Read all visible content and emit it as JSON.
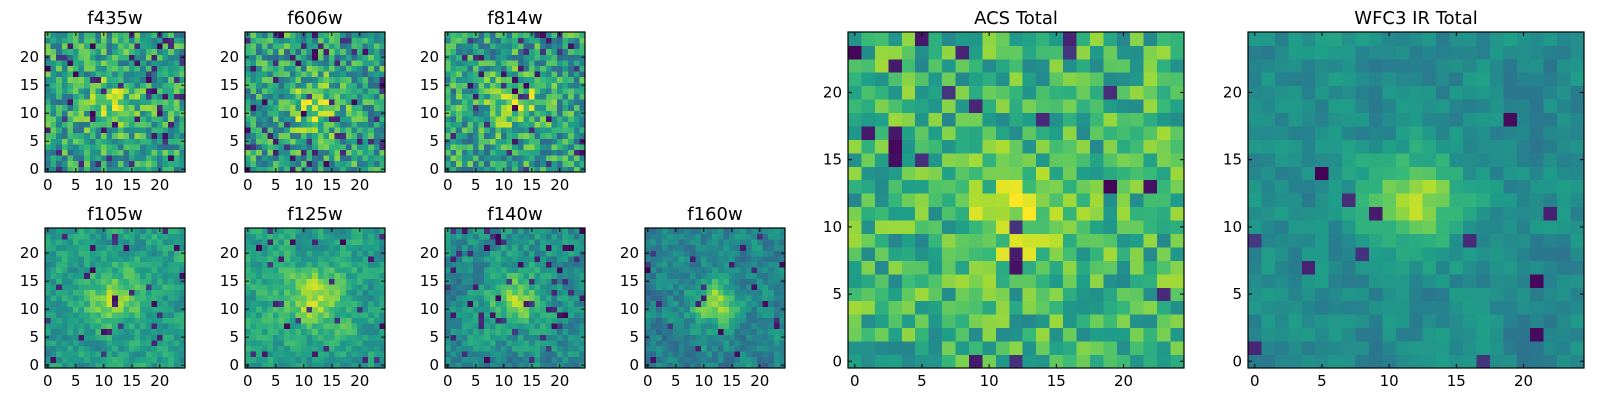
{
  "chart_data": [
    {
      "type": "heatmap",
      "title": "f435w",
      "grid_size": 25,
      "xticks": [
        "0",
        "5",
        "10",
        "15",
        "20"
      ],
      "yticks": [
        "0",
        "5",
        "10",
        "15",
        "20"
      ],
      "xlim": [
        -0.5,
        24.5
      ],
      "ylim": [
        -0.5,
        24.5
      ],
      "colormap": "viridis",
      "value_range": [
        0,
        1
      ],
      "seed": 11,
      "base": 0.58,
      "noise": 0.24,
      "hole_rate": 0.09,
      "blob": {
        "x": 12,
        "y": 12,
        "r": 3.5,
        "amp": 0.22
      }
    },
    {
      "type": "heatmap",
      "title": "f606w",
      "grid_size": 25,
      "xticks": [
        "0",
        "5",
        "10",
        "15",
        "20"
      ],
      "yticks": [
        "0",
        "5",
        "10",
        "15",
        "20"
      ],
      "xlim": [
        -0.5,
        24.5
      ],
      "ylim": [
        -0.5,
        24.5
      ],
      "colormap": "viridis",
      "value_range": [
        0,
        1
      ],
      "seed": 23,
      "base": 0.57,
      "noise": 0.25,
      "hole_rate": 0.08,
      "blob": {
        "x": 12,
        "y": 11,
        "r": 3.2,
        "amp": 0.3
      }
    },
    {
      "type": "heatmap",
      "title": "f814w",
      "grid_size": 25,
      "xticks": [
        "0",
        "5",
        "10",
        "15",
        "20"
      ],
      "yticks": [
        "0",
        "5",
        "10",
        "15",
        "20"
      ],
      "xlim": [
        -0.5,
        24.5
      ],
      "ylim": [
        -0.5,
        24.5
      ],
      "colormap": "viridis",
      "value_range": [
        0,
        1
      ],
      "seed": 37,
      "base": 0.57,
      "noise": 0.25,
      "hole_rate": 0.07,
      "blob": {
        "x": 12,
        "y": 12,
        "r": 3.2,
        "amp": 0.3
      }
    },
    {
      "type": "heatmap",
      "title": "f105w",
      "grid_size": 25,
      "xticks": [
        "0",
        "5",
        "10",
        "15",
        "20"
      ],
      "yticks": [
        "0",
        "5",
        "10",
        "15",
        "20"
      ],
      "xlim": [
        -0.5,
        24.5
      ],
      "ylim": [
        -0.5,
        24.5
      ],
      "colormap": "viridis",
      "value_range": [
        0,
        1
      ],
      "seed": 41,
      "base": 0.55,
      "noise": 0.2,
      "hole_rate": 0.05,
      "blob": {
        "x": 12,
        "y": 12,
        "r": 3.5,
        "amp": 0.3
      },
      "smooth": true
    },
    {
      "type": "heatmap",
      "title": "f125w",
      "grid_size": 25,
      "xticks": [
        "0",
        "5",
        "10",
        "15",
        "20"
      ],
      "yticks": [
        "0",
        "5",
        "10",
        "15",
        "20"
      ],
      "xlim": [
        -0.5,
        24.5
      ],
      "ylim": [
        -0.5,
        24.5
      ],
      "colormap": "viridis",
      "value_range": [
        0,
        1
      ],
      "seed": 53,
      "base": 0.58,
      "noise": 0.2,
      "hole_rate": 0.05,
      "blob": {
        "x": 12,
        "y": 12,
        "r": 3.5,
        "amp": 0.3
      },
      "smooth": true
    },
    {
      "type": "heatmap",
      "title": "f140w",
      "grid_size": 25,
      "xticks": [
        "0",
        "5",
        "10",
        "15",
        "20"
      ],
      "yticks": [
        "0",
        "5",
        "10",
        "15",
        "20"
      ],
      "xlim": [
        -0.5,
        24.5
      ],
      "ylim": [
        -0.5,
        24.5
      ],
      "colormap": "viridis",
      "value_range": [
        0,
        1
      ],
      "seed": 67,
      "base": 0.5,
      "noise": 0.22,
      "hole_rate": 0.06,
      "blob": {
        "x": 12,
        "y": 12,
        "r": 3.5,
        "amp": 0.3
      },
      "smooth": true
    },
    {
      "type": "heatmap",
      "title": "f160w",
      "grid_size": 25,
      "xticks": [
        "0",
        "5",
        "10",
        "15",
        "20"
      ],
      "yticks": [
        "0",
        "5",
        "10",
        "15",
        "20"
      ],
      "xlim": [
        -0.5,
        24.5
      ],
      "ylim": [
        -0.5,
        24.5
      ],
      "colormap": "viridis",
      "value_range": [
        0,
        1
      ],
      "seed": 79,
      "base": 0.45,
      "noise": 0.2,
      "hole_rate": 0.05,
      "blob": {
        "x": 12,
        "y": 11,
        "r": 3.0,
        "amp": 0.4
      },
      "smooth": true
    },
    {
      "type": "heatmap",
      "title": "ACS Total",
      "grid_size": 25,
      "xticks": [
        "0",
        "5",
        "10",
        "15",
        "20"
      ],
      "yticks": [
        "0",
        "5",
        "10",
        "15",
        "20"
      ],
      "xlim": [
        -0.5,
        24.5
      ],
      "ylim": [
        -0.5,
        24.5
      ],
      "colormap": "viridis",
      "value_range": [
        0,
        1
      ],
      "seed": 97,
      "base": 0.66,
      "noise": 0.2,
      "hole_rate": 0.04,
      "blob": {
        "x": 12,
        "y": 11,
        "r": 2.2,
        "amp": 0.28
      }
    },
    {
      "type": "heatmap",
      "title": "WFC3 IR Total",
      "grid_size": 25,
      "xticks": [
        "0",
        "5",
        "10",
        "15",
        "20"
      ],
      "yticks": [
        "0",
        "5",
        "10",
        "15",
        "20"
      ],
      "xlim": [
        -0.5,
        24.5
      ],
      "ylim": [
        -0.5,
        24.5
      ],
      "colormap": "viridis",
      "value_range": [
        0,
        1
      ],
      "seed": 131,
      "base": 0.48,
      "noise": 0.14,
      "hole_rate": 0.03,
      "blob": {
        "x": 12,
        "y": 12,
        "r": 2.5,
        "amp": 0.4
      },
      "smooth": true
    }
  ]
}
